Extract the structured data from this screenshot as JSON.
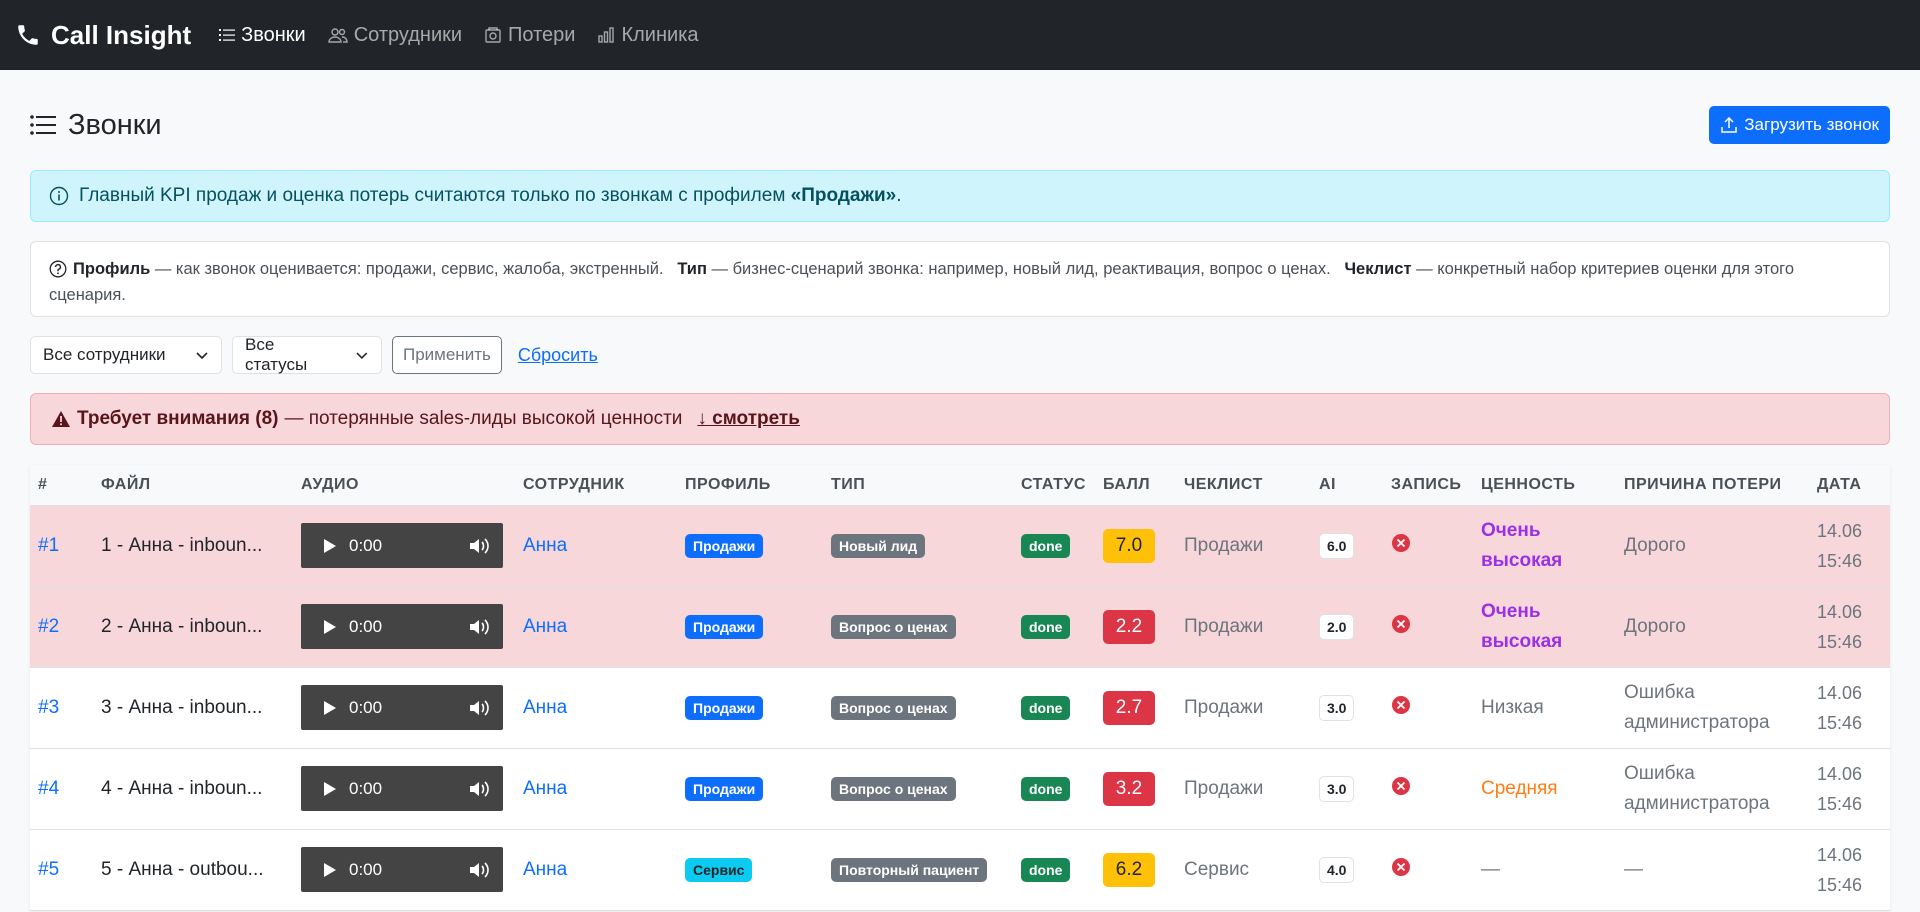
{
  "nav": {
    "brand": "Call Insight",
    "items": [
      {
        "label": "Звонки",
        "icon": "list-icon",
        "active": true
      },
      {
        "label": "Сотрудники",
        "icon": "people-icon",
        "active": false
      },
      {
        "label": "Потери",
        "icon": "loss-icon",
        "active": false
      },
      {
        "label": "Клиника",
        "icon": "bar-chart-icon",
        "active": false
      }
    ]
  },
  "page": {
    "title": "Звонки",
    "upload_label": "Загрузить звонок"
  },
  "info_alert": {
    "text": "Главный KPI продаж и оценка потерь считаются только по звонкам с профилем ",
    "bold": "«Продажи»",
    "suffix": "."
  },
  "legend": {
    "profile_term": "Профиль",
    "profile_desc": " — как звонок оценивается: продажи, сервис, жалоба, экстренный.",
    "type_term": "Тип",
    "type_desc": " — бизнес-сценарий звонка: например, новый лид, реактивация, вопрос о ценах.",
    "checklist_term": "Чеклист",
    "checklist_desc": " — конкретный набор критериев оценки для этого сценария."
  },
  "filters": {
    "employee": "Все сотрудники",
    "status": "Все статусы",
    "apply": "Применить",
    "reset": "Сбросить"
  },
  "attention": {
    "title": "Требует внимания (8)",
    "text": " — потерянные sales-лиды высокой ценности",
    "link": "↓ смотреть"
  },
  "table": {
    "headers": [
      "#",
      "ФАЙЛ",
      "АУДИО",
      "СОТРУДНИК",
      "ПРОФИЛЬ",
      "ТИП",
      "СТАТУС",
      "БАЛЛ",
      "ЧЕКЛИСТ",
      "AI",
      "ЗАПИСЬ",
      "ЦЕННОСТЬ",
      "ПРИЧИНА ПОТЕРИ",
      "ДАТА"
    ],
    "rows": [
      {
        "id": "#1",
        "file": "1 - Анна - inboun...",
        "time": "0:00",
        "employee": "Анна",
        "profile": "Продажи",
        "type": "Новый лид",
        "status": "done",
        "score": "7.0",
        "checklist": "Продажи",
        "ai": "6.0",
        "value": "Очень высокая",
        "reason": "Дорого",
        "date1": "14.06",
        "date2": "15:46"
      },
      {
        "id": "#2",
        "file": "2 - Анна - inboun...",
        "time": "0:00",
        "employee": "Анна",
        "profile": "Продажи",
        "type": "Вопрос о ценах",
        "status": "done",
        "score": "2.2",
        "checklist": "Продажи",
        "ai": "2.0",
        "value": "Очень высокая",
        "reason": "Дорого",
        "date1": "14.06",
        "date2": "15:46"
      },
      {
        "id": "#3",
        "file": "3 - Анна - inboun...",
        "time": "0:00",
        "employee": "Анна",
        "profile": "Продажи",
        "type": "Вопрос о ценах",
        "status": "done",
        "score": "2.7",
        "checklist": "Продажи",
        "ai": "3.0",
        "value": "Низкая",
        "reason": "Ошибка администратора",
        "date1": "14.06",
        "date2": "15:46"
      },
      {
        "id": "#4",
        "file": "4 - Анна - inboun...",
        "time": "0:00",
        "employee": "Анна",
        "profile": "Продажи",
        "type": "Вопрос о ценах",
        "status": "done",
        "score": "3.2",
        "checklist": "Продажи",
        "ai": "3.0",
        "value": "Средняя",
        "reason": "Ошибка администратора",
        "date1": "14.06",
        "date2": "15:46"
      },
      {
        "id": "#5",
        "file": "5 - Анна - outbou...",
        "time": "0:00",
        "employee": "Анна",
        "profile": "Сервис",
        "type": "Повторный пациент",
        "status": "done",
        "score": "6.2",
        "checklist": "Сервис",
        "ai": "4.0",
        "value": "—",
        "reason": "—",
        "date1": "14.06",
        "date2": "15:46"
      }
    ]
  },
  "colors": {
    "navbar": "#212529",
    "primary": "#0d6efd",
    "danger": "#dc3545",
    "warning": "#ffc107",
    "success": "#198754",
    "attention_row": "#f8d7da",
    "value_high": "#9b30e6",
    "value_medium": "#fd7e14"
  }
}
